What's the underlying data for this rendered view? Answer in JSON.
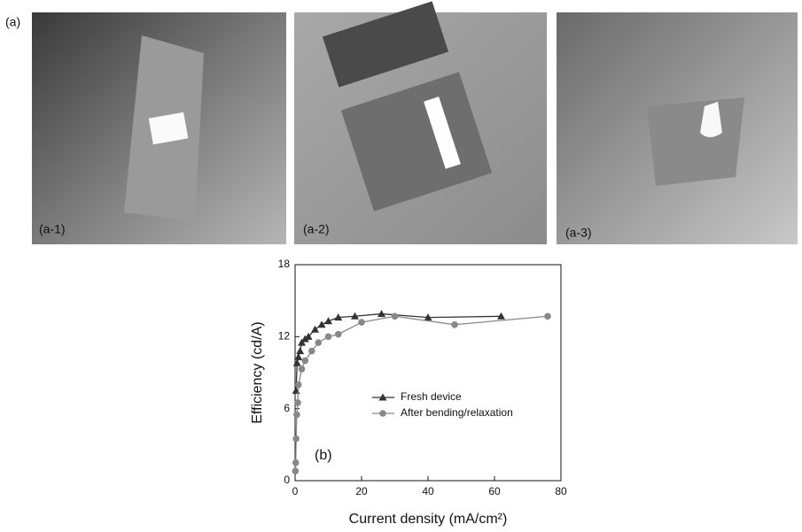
{
  "figure": {
    "label": "(a)",
    "photos": [
      "(a-1)",
      "(a-2)",
      "(a-3)"
    ]
  },
  "chart_data": {
    "type": "line",
    "annotation": "(b)",
    "xlabel": "Current density (mA/cm²)",
    "ylabel": "Efficiency (cd/A)",
    "xlim": [
      0,
      80
    ],
    "xticks": [
      0,
      20,
      40,
      60,
      80
    ],
    "ylim": [
      0,
      18
    ],
    "yticks": [
      0,
      6,
      12,
      18
    ],
    "legend": "center-right",
    "series": [
      {
        "name": "Fresh device",
        "color": "#333333",
        "marker": "triangle",
        "x": [
          0.3,
          0.6,
          1,
          1.5,
          2,
          3,
          4,
          6,
          8,
          10,
          13,
          18,
          26,
          40,
          62
        ],
        "values": [
          7.5,
          9.8,
          10.3,
          10.8,
          11.5,
          11.8,
          12.0,
          12.6,
          13.0,
          13.3,
          13.6,
          13.7,
          13.9,
          13.6,
          13.7
        ]
      },
      {
        "name": "After bending/relaxation",
        "color": "#888888",
        "marker": "circle",
        "x": [
          0.1,
          0.2,
          0.3,
          0.5,
          0.8,
          1,
          2,
          3,
          5,
          7,
          10,
          13,
          20,
          30,
          48,
          76
        ],
        "values": [
          0.8,
          1.5,
          3.5,
          5.5,
          6.5,
          8.0,
          9.3,
          10.0,
          10.8,
          11.5,
          12.0,
          12.2,
          13.2,
          13.7,
          13.0,
          13.7
        ]
      }
    ]
  }
}
